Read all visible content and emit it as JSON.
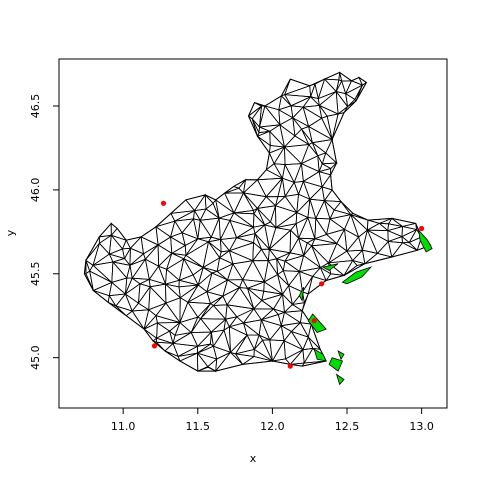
{
  "chart_data": {
    "type": "scatter",
    "title": "",
    "xlabel": "x",
    "ylabel": "y",
    "xlim": [
      10.57,
      13.17
    ],
    "ylim": [
      44.7,
      46.78
    ],
    "x_ticks": [
      "11.0",
      "11.5",
      "12.0",
      "12.5",
      "13.0"
    ],
    "x_tick_values": [
      11.0,
      11.5,
      12.0,
      12.5,
      13.0
    ],
    "y_ticks": [
      "45.0",
      "45.5",
      "46.0",
      "46.5"
    ],
    "y_tick_values": [
      45.0,
      45.5,
      46.0,
      46.5
    ],
    "grid": false,
    "legend": "none",
    "colors": {
      "mesh_edge": "#000000",
      "point": "#ff0000",
      "polygon_fill": "#00dd00",
      "polygon_edge": "#000000"
    },
    "region_outline": [
      [
        10.75,
        45.58
      ],
      [
        10.84,
        45.72
      ],
      [
        10.92,
        45.8
      ],
      [
        10.96,
        45.77
      ],
      [
        11.02,
        45.7
      ],
      [
        11.12,
        45.72
      ],
      [
        11.22,
        45.78
      ],
      [
        11.32,
        45.86
      ],
      [
        11.42,
        45.94
      ],
      [
        11.55,
        45.97
      ],
      [
        11.62,
        45.94
      ],
      [
        11.68,
        45.98
      ],
      [
        11.74,
        46.02
      ],
      [
        11.82,
        46.06
      ],
      [
        11.9,
        46.06
      ],
      [
        11.96,
        46.12
      ],
      [
        11.98,
        46.22
      ],
      [
        11.9,
        46.32
      ],
      [
        11.84,
        46.44
      ],
      [
        11.88,
        46.52
      ],
      [
        11.95,
        46.5
      ],
      [
        12.06,
        46.56
      ],
      [
        12.12,
        46.66
      ],
      [
        12.25,
        46.62
      ],
      [
        12.35,
        46.66
      ],
      [
        12.45,
        46.7
      ],
      [
        12.53,
        46.65
      ],
      [
        12.58,
        46.67
      ],
      [
        12.63,
        46.64
      ],
      [
        12.56,
        46.53
      ],
      [
        12.48,
        46.46
      ],
      [
        12.4,
        46.3
      ],
      [
        12.43,
        46.16
      ],
      [
        12.39,
        46.09
      ],
      [
        12.4,
        46.0
      ],
      [
        12.46,
        45.93
      ],
      [
        12.54,
        45.86
      ],
      [
        12.64,
        45.82
      ],
      [
        12.8,
        45.83
      ],
      [
        12.96,
        45.8
      ],
      [
        13.0,
        45.72
      ],
      [
        13.06,
        45.67
      ],
      [
        12.97,
        45.64
      ],
      [
        12.8,
        45.6
      ],
      [
        12.62,
        45.56
      ],
      [
        12.48,
        45.49
      ],
      [
        12.36,
        45.46
      ],
      [
        12.24,
        45.38
      ],
      [
        12.2,
        45.28
      ],
      [
        12.26,
        45.2
      ],
      [
        12.32,
        45.05
      ],
      [
        12.36,
        44.98
      ],
      [
        12.2,
        44.95
      ],
      [
        12.12,
        44.96
      ],
      [
        12.0,
        44.98
      ],
      [
        11.8,
        44.96
      ],
      [
        11.62,
        44.92
      ],
      [
        11.5,
        44.92
      ],
      [
        11.38,
        44.98
      ],
      [
        11.28,
        45.04
      ],
      [
        11.2,
        45.1
      ],
      [
        11.14,
        45.17
      ],
      [
        11.02,
        45.25
      ],
      [
        10.9,
        45.33
      ],
      [
        10.8,
        45.4
      ],
      [
        10.74,
        45.5
      ]
    ],
    "points": [
      {
        "x": 11.27,
        "y": 45.92
      },
      {
        "x": 13.0,
        "y": 45.77
      },
      {
        "x": 12.33,
        "y": 45.44
      },
      {
        "x": 12.28,
        "y": 45.22
      },
      {
        "x": 11.21,
        "y": 45.07
      },
      {
        "x": 12.12,
        "y": 44.95
      }
    ],
    "green_polygons": [
      [
        [
          12.98,
          45.76
        ],
        [
          13.04,
          45.7
        ],
        [
          13.07,
          45.65
        ],
        [
          13.03,
          45.63
        ],
        [
          12.99,
          45.7
        ]
      ],
      [
        [
          12.47,
          45.45
        ],
        [
          12.56,
          45.51
        ],
        [
          12.66,
          45.54
        ],
        [
          12.6,
          45.48
        ],
        [
          12.5,
          45.44
        ]
      ],
      [
        [
          12.34,
          45.54
        ],
        [
          12.44,
          45.56
        ],
        [
          12.38,
          45.52
        ]
      ],
      [
        [
          12.18,
          45.37
        ],
        [
          12.21,
          45.42
        ],
        [
          12.2,
          45.34
        ]
      ],
      [
        [
          12.27,
          45.26
        ],
        [
          12.36,
          45.17
        ],
        [
          12.3,
          45.15
        ],
        [
          12.24,
          45.22
        ]
      ],
      [
        [
          12.28,
          45.05
        ],
        [
          12.34,
          45.02
        ],
        [
          12.36,
          44.98
        ],
        [
          12.3,
          44.99
        ]
      ],
      [
        [
          12.4,
          45.0
        ],
        [
          12.47,
          44.98
        ],
        [
          12.44,
          44.92
        ],
        [
          12.38,
          44.96
        ]
      ],
      [
        [
          12.43,
          44.9
        ],
        [
          12.48,
          44.87
        ],
        [
          12.45,
          44.84
        ]
      ],
      [
        [
          12.44,
          45.04
        ],
        [
          12.48,
          45.02
        ],
        [
          12.46,
          44.99
        ]
      ]
    ]
  }
}
